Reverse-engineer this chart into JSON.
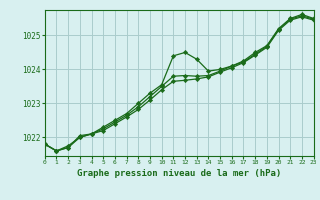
{
  "title": "Graphe pression niveau de la mer (hPa)",
  "bg_color": "#d8f0f0",
  "grid_color": "#aacccc",
  "line_color": "#1a6b1a",
  "marker_color": "#1a6b1a",
  "xlim": [
    0,
    23
  ],
  "ylim": [
    1021.45,
    1025.75
  ],
  "yticks": [
    1022,
    1023,
    1024,
    1025
  ],
  "xticks": [
    0,
    1,
    2,
    3,
    4,
    5,
    6,
    7,
    8,
    9,
    10,
    11,
    12,
    13,
    14,
    15,
    16,
    17,
    18,
    19,
    20,
    21,
    22,
    23
  ],
  "series": [
    [
      1021.8,
      1021.6,
      1021.7,
      1022.05,
      1022.1,
      1022.3,
      1022.5,
      1022.7,
      1023.0,
      1023.3,
      1023.55,
      1024.4,
      1024.5,
      1024.3,
      1023.95,
      1024.0,
      1024.1,
      1024.25,
      1024.5,
      1024.7,
      1025.2,
      1025.5,
      1025.62,
      1025.5
    ],
    [
      1021.8,
      1021.6,
      1021.7,
      1022.0,
      1022.1,
      1022.2,
      1022.4,
      1022.6,
      1022.82,
      1023.1,
      1023.4,
      1023.65,
      1023.68,
      1023.72,
      1023.78,
      1023.92,
      1024.05,
      1024.2,
      1024.42,
      1024.65,
      1025.15,
      1025.45,
      1025.55,
      1025.45
    ],
    [
      1021.8,
      1021.6,
      1021.75,
      1022.0,
      1022.1,
      1022.25,
      1022.45,
      1022.65,
      1022.9,
      1023.2,
      1023.5,
      1023.8,
      1023.82,
      1023.8,
      1023.82,
      1023.95,
      1024.1,
      1024.22,
      1024.45,
      1024.68,
      1025.18,
      1025.48,
      1025.58,
      1025.48
    ]
  ]
}
